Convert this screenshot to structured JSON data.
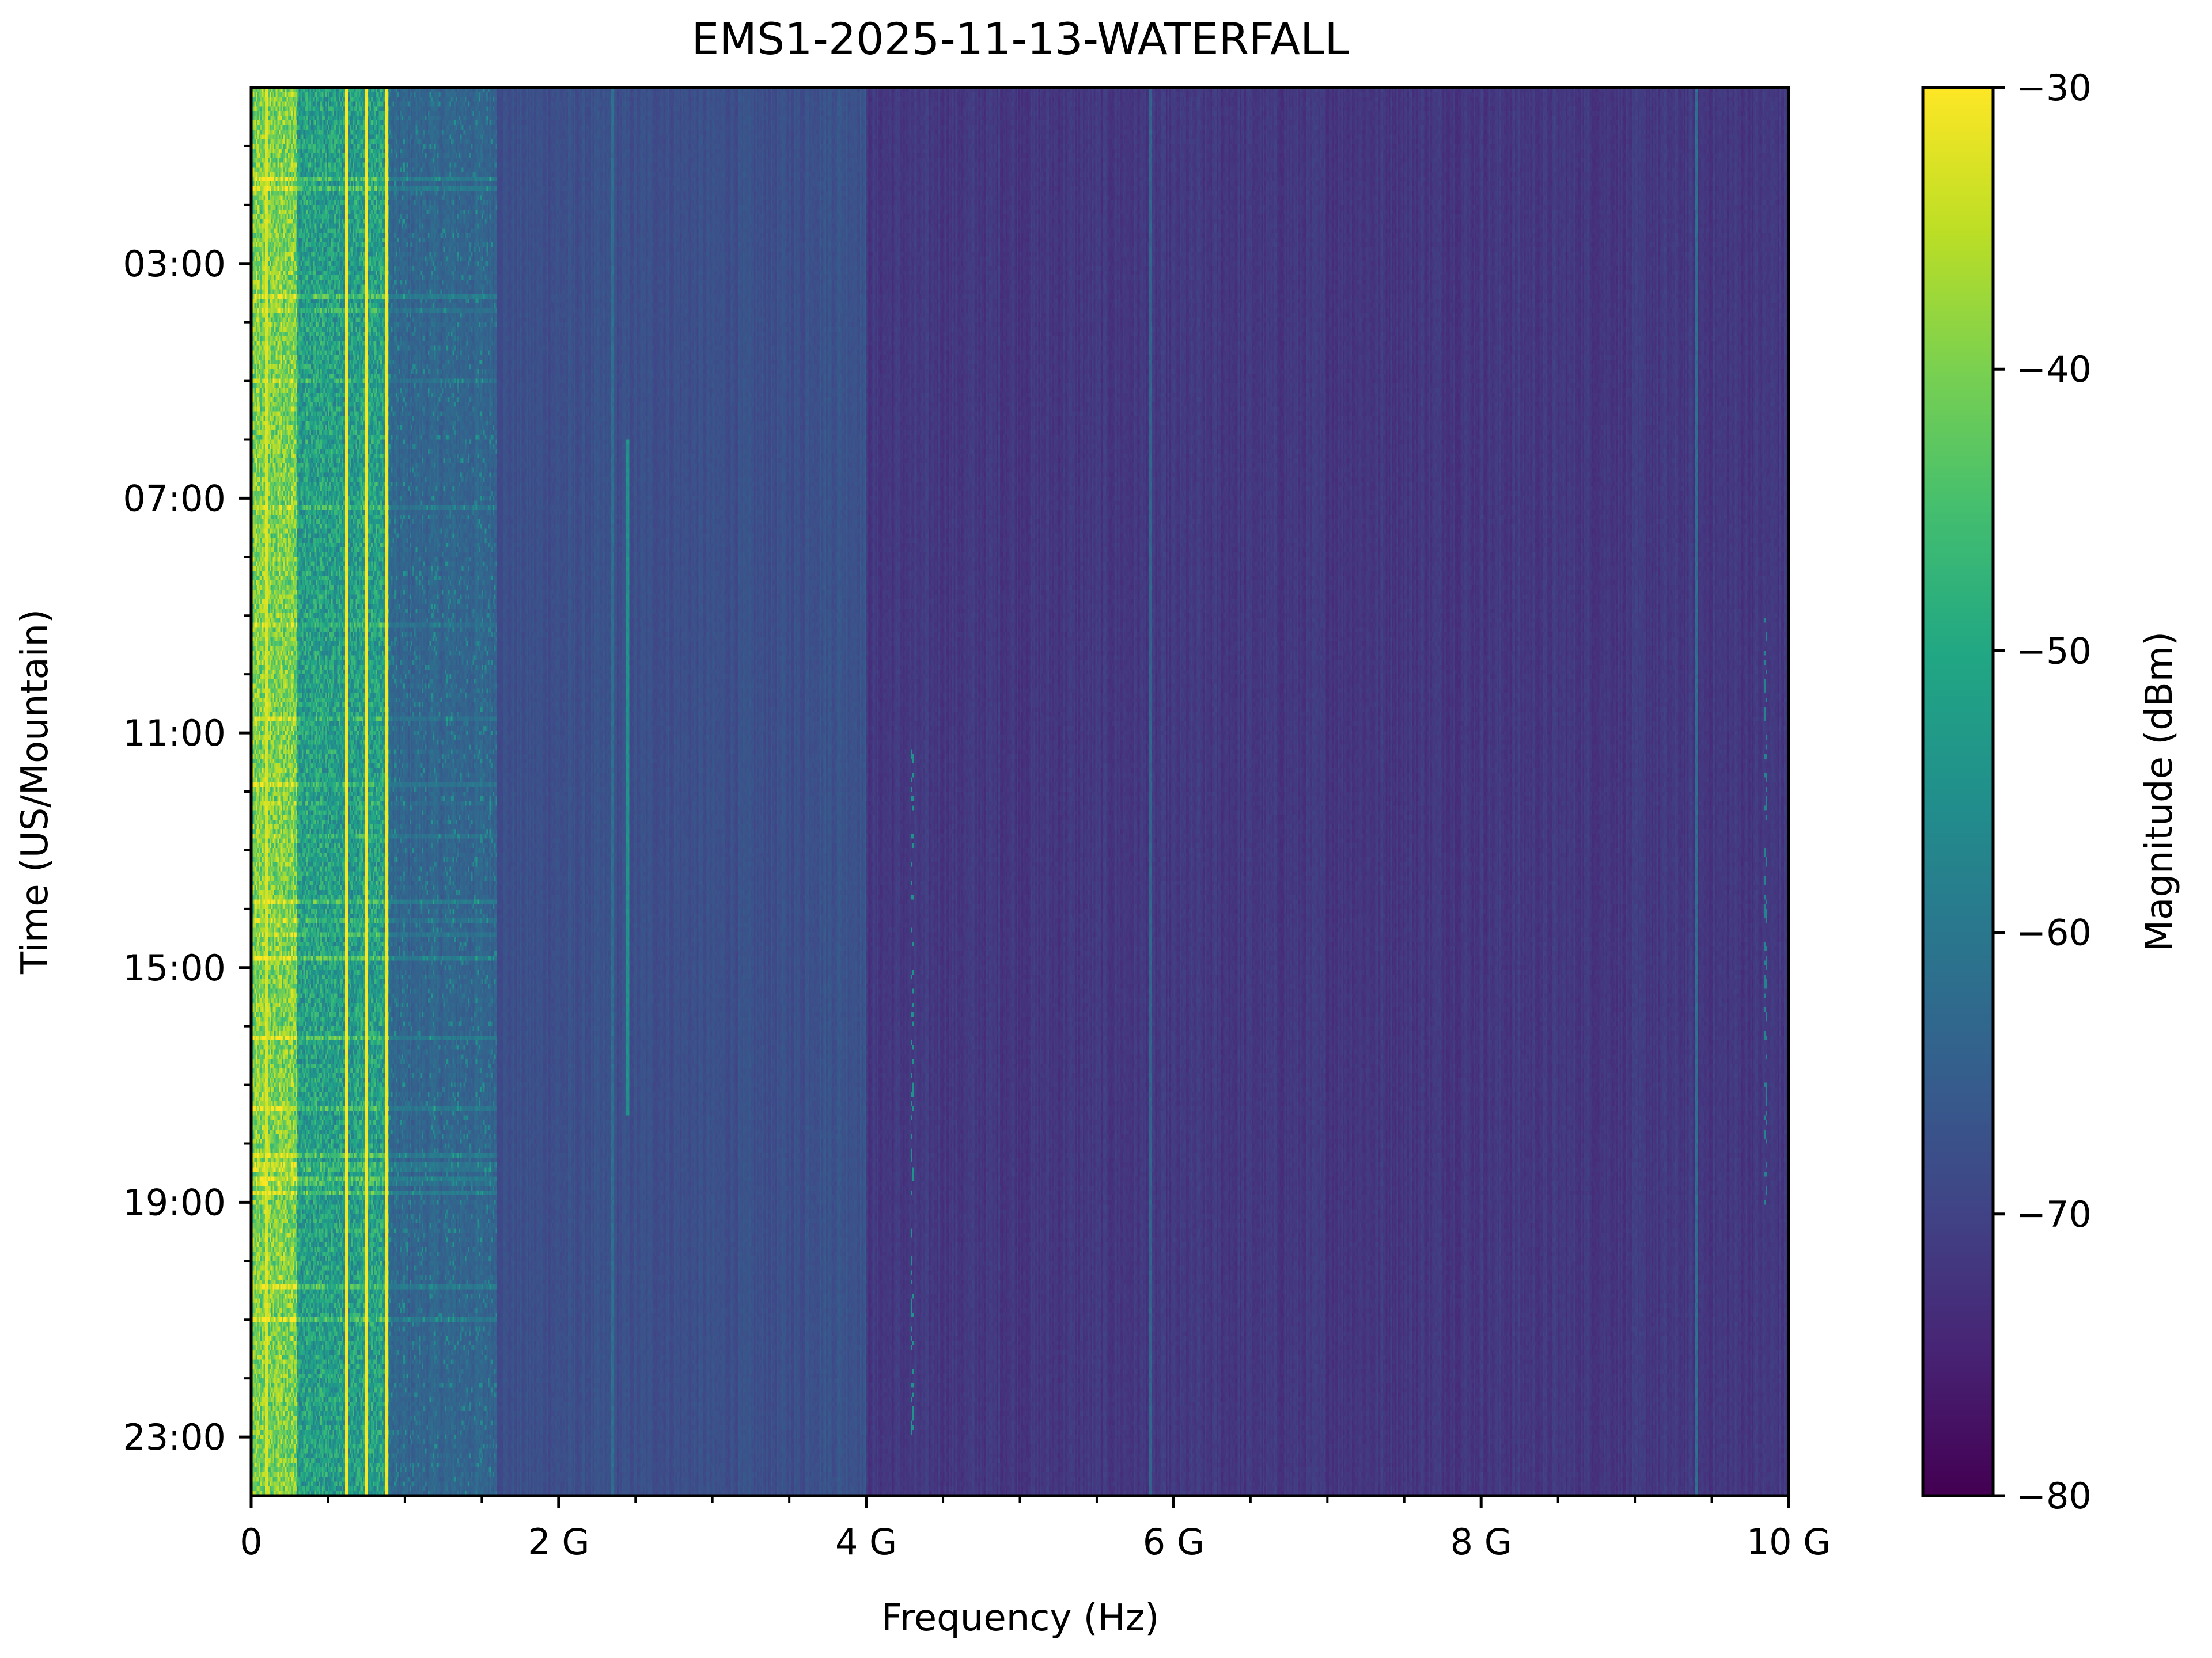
{
  "chart_data": {
    "type": "heatmap",
    "title": "EMS1-2025-11-13-WATERFALL",
    "xlabel": "Frequency (Hz)",
    "ylabel": "Time (US/Mountain)",
    "colorbar_label": "Magnitude (dBm)",
    "colormap": "viridis",
    "xlim_hz": [
      0,
      10000000000
    ],
    "x_ticks": [
      "0",
      "2 G",
      "4 G",
      "6 G",
      "8 G",
      "10 G"
    ],
    "x_tick_values_hz": [
      0,
      2000000000,
      4000000000,
      6000000000,
      8000000000,
      10000000000
    ],
    "x_minor_step_hz": 500000000,
    "ylim_hours": [
      0,
      24
    ],
    "y_inverted": true,
    "y_ticks": [
      "03:00",
      "07:00",
      "11:00",
      "15:00",
      "19:00",
      "23:00"
    ],
    "y_tick_values_hours": [
      3,
      7,
      11,
      15,
      19,
      23
    ],
    "y_minor_step_hours": 1,
    "clim_dbm": [
      -80,
      -30
    ],
    "colorbar_ticks": [
      "−30",
      "−40",
      "−50",
      "−60",
      "−70",
      "−80"
    ],
    "colorbar_tick_values": [
      -30,
      -40,
      -50,
      -60,
      -70,
      -80
    ],
    "background_levels": [
      {
        "from_ghz": 0.0,
        "to_ghz": 0.3,
        "dbm": -40
      },
      {
        "from_ghz": 0.3,
        "to_ghz": 0.9,
        "dbm": -52
      },
      {
        "from_ghz": 0.9,
        "to_ghz": 1.6,
        "dbm": -64
      },
      {
        "from_ghz": 1.6,
        "to_ghz": 3.6,
        "dbm": -68
      },
      {
        "from_ghz": 3.6,
        "to_ghz": 4.0,
        "dbm": -67
      },
      {
        "from_ghz": 4.0,
        "to_ghz": 10.0,
        "dbm": -72
      }
    ],
    "signals": [
      {
        "freq_ghz": 0.1,
        "dbm": -33,
        "from_hour": 0,
        "to_hour": 24
      },
      {
        "freq_ghz": 0.62,
        "dbm": -30,
        "from_hour": 0,
        "to_hour": 24
      },
      {
        "freq_ghz": 0.75,
        "dbm": -30,
        "from_hour": 0,
        "to_hour": 24
      },
      {
        "freq_ghz": 0.88,
        "dbm": -30,
        "from_hour": 0,
        "to_hour": 24
      },
      {
        "freq_ghz": 2.35,
        "dbm": -62,
        "from_hour": 0,
        "to_hour": 24
      },
      {
        "freq_ghz": 2.45,
        "dbm": -55,
        "from_hour": 6,
        "to_hour": 17.5
      },
      {
        "freq_ghz": 4.3,
        "dbm": -55,
        "from_hour": 11,
        "to_hour": 23
      },
      {
        "freq_ghz": 5.85,
        "dbm": -64,
        "from_hour": 0,
        "to_hour": 24
      },
      {
        "freq_ghz": 9.4,
        "dbm": -62,
        "from_hour": 0,
        "to_hour": 24
      },
      {
        "freq_ghz": 9.85,
        "dbm": -58,
        "from_hour": 9,
        "to_hour": 19
      }
    ]
  }
}
